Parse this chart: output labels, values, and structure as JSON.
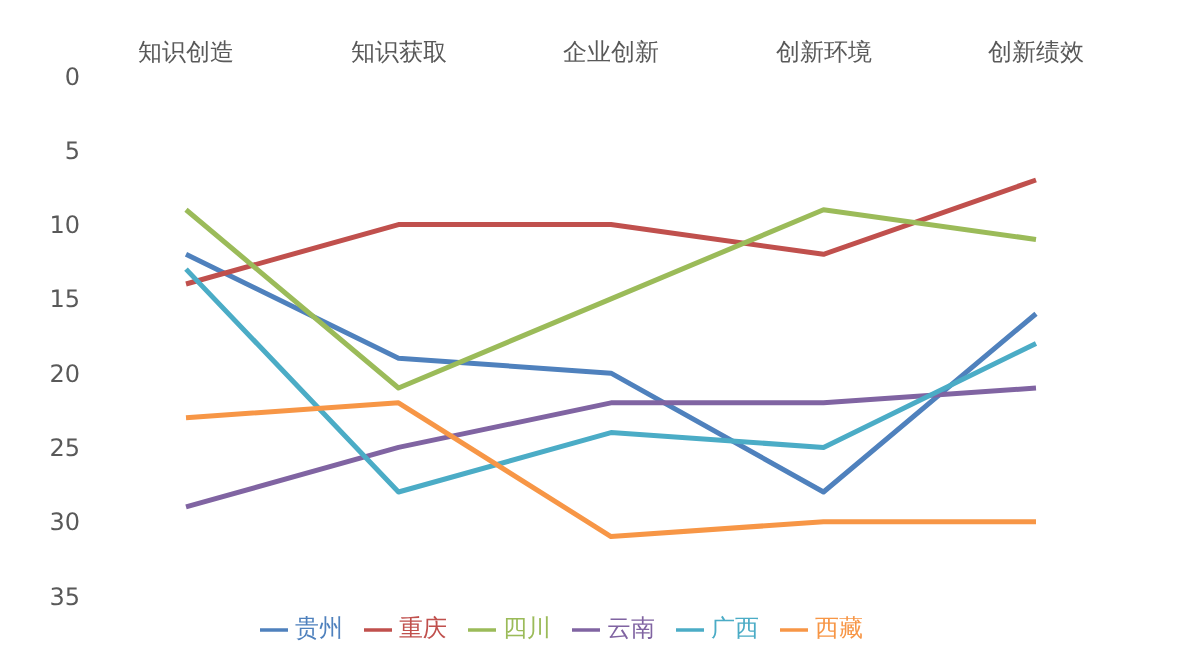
{
  "chart_data": {
    "type": "line",
    "categories": [
      "知识创造",
      "知识获取",
      "企业创新",
      "创新环境",
      "创新绩效"
    ],
    "series": [
      {
        "name": "贵州",
        "color": "#4f81bd",
        "values": [
          12,
          19,
          20,
          28,
          16
        ]
      },
      {
        "name": "重庆",
        "color": "#c0504d",
        "values": [
          14,
          10,
          10,
          12,
          7
        ]
      },
      {
        "name": "四川",
        "color": "#9bbb59",
        "values": [
          9,
          21,
          15,
          9,
          11
        ]
      },
      {
        "name": "云南",
        "color": "#8064a2",
        "values": [
          29,
          25,
          22,
          22,
          21
        ]
      },
      {
        "name": "广西",
        "color": "#4bacc6",
        "values": [
          13,
          28,
          24,
          25,
          18
        ]
      },
      {
        "name": "西藏",
        "color": "#f79646",
        "values": [
          23,
          22,
          31,
          30,
          30
        ]
      }
    ],
    "ylim": [
      35,
      0
    ],
    "yticks": [
      0,
      5,
      10,
      15,
      20,
      25,
      30,
      35
    ],
    "grid": false,
    "legend": "bottom",
    "marker": "none",
    "line_style": "solid"
  }
}
